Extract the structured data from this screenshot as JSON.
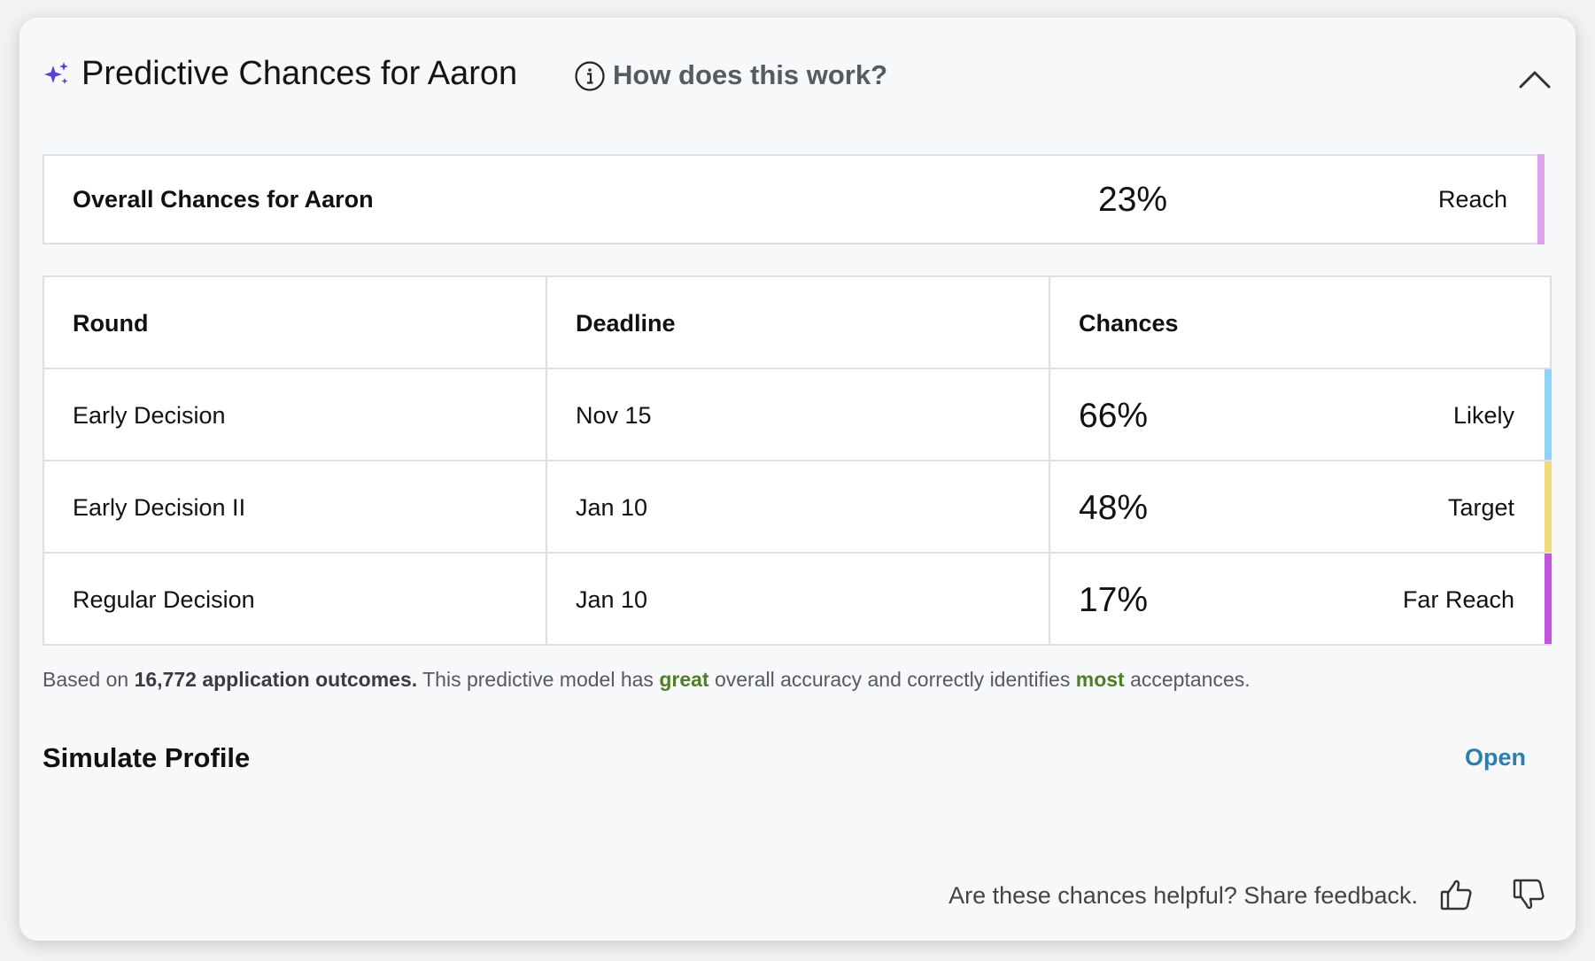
{
  "header": {
    "title": "Predictive Chances for Aaron",
    "help_link": "How does this work?",
    "icons": [
      "sparkle-icon",
      "info-icon",
      "chevron-up-icon"
    ]
  },
  "overall": {
    "label": "Overall Chances for Aaron",
    "percent": "23%",
    "category": "Reach",
    "color": "#dca3ea"
  },
  "table": {
    "headers": [
      "Round",
      "Deadline",
      "Chances"
    ],
    "rows": [
      {
        "round": "Early Decision",
        "deadline": "Nov 15",
        "percent": "66%",
        "category": "Likely",
        "color": "#8fd3f5"
      },
      {
        "round": "Early Decision II",
        "deadline": "Jan 10",
        "percent": "48%",
        "category": "Target",
        "color": "#f2d97a"
      },
      {
        "round": "Regular Decision",
        "deadline": "Jan 10",
        "percent": "17%",
        "category": "Far Reach",
        "color": "#c354e0"
      }
    ]
  },
  "note": {
    "prefix": "Based on ",
    "count": "16,772 application outcomes.",
    "middle1": " This predictive model has ",
    "accuracy": "great",
    "middle2": " overall accuracy and correctly identifies ",
    "acceptances": "most",
    "suffix": " acceptances."
  },
  "simulate": {
    "title": "Simulate Profile",
    "action": "Open"
  },
  "feedback": {
    "prompt": "Are these chances helpful? Share feedback.",
    "icons": [
      "thumbs-up-icon",
      "thumbs-down-icon"
    ]
  },
  "colors": {
    "accent_link": "#2d7eab",
    "positive_text": "#4f7d2a",
    "sparkle": "#5b3fd6"
  }
}
